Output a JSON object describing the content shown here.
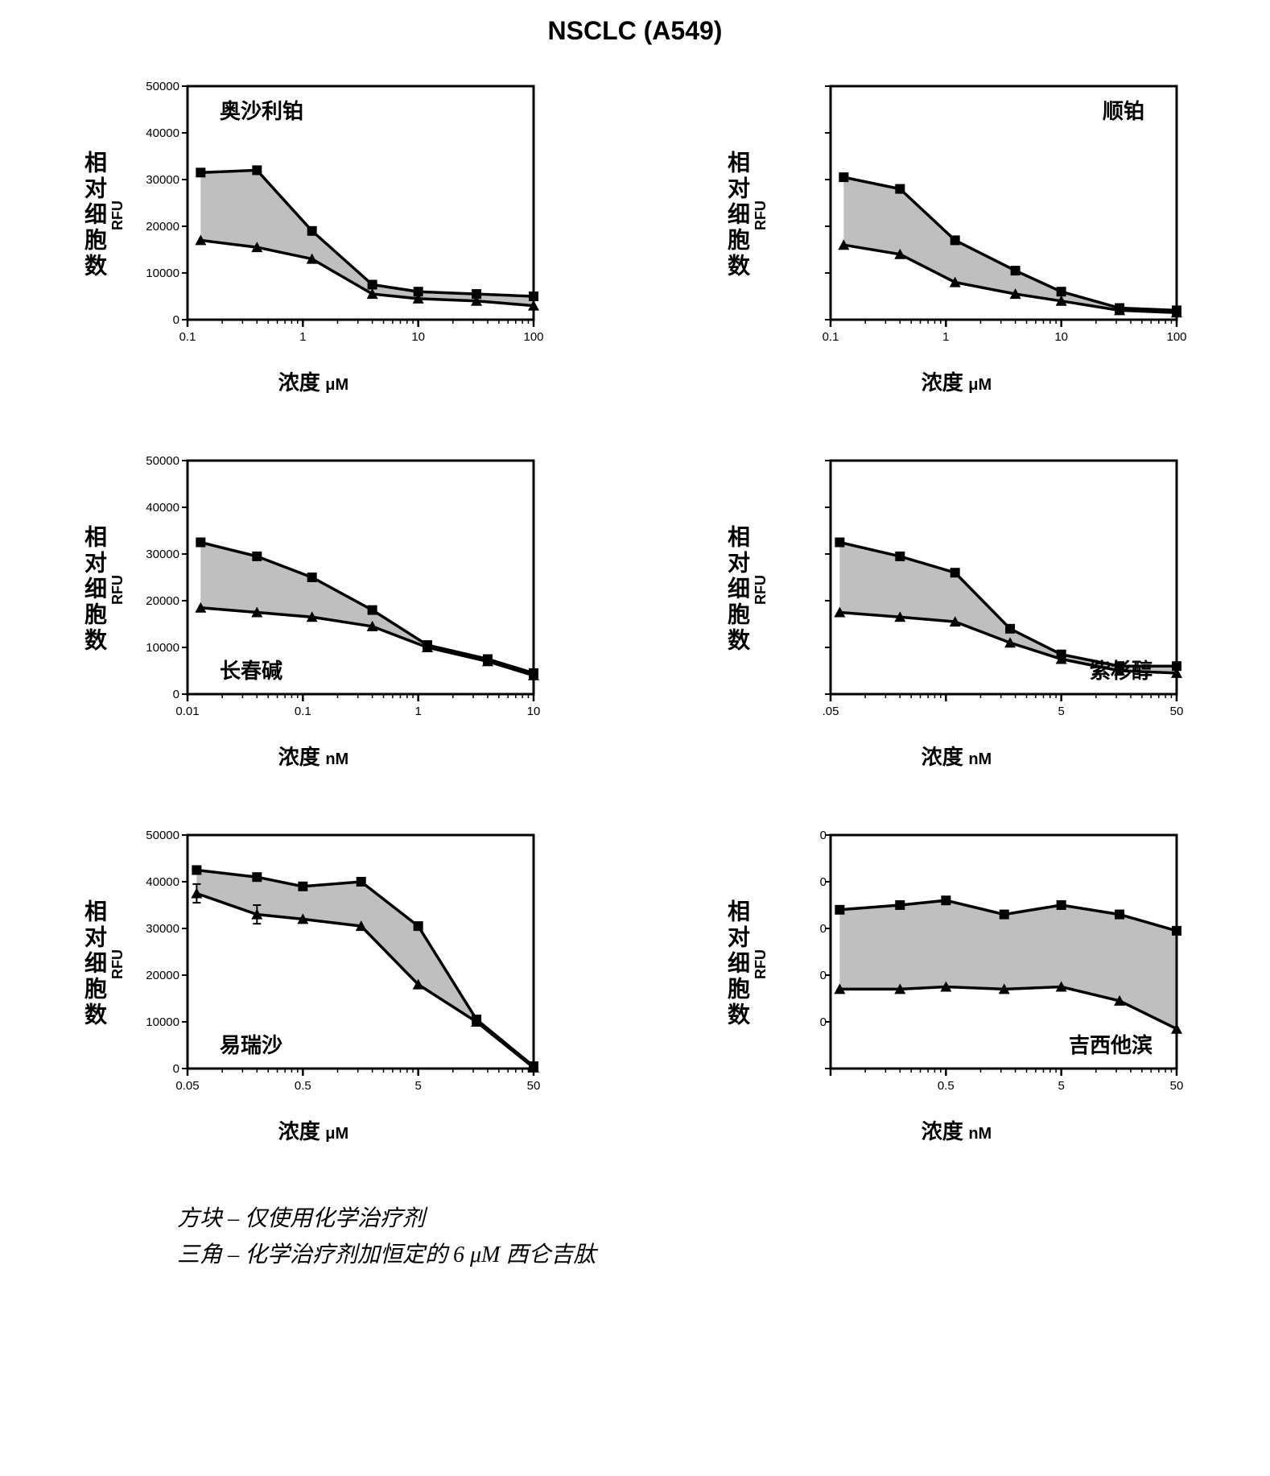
{
  "title": "NSCLC (A549)",
  "ylabel_cn": "相对细胞数",
  "ylabel_en": "RFU",
  "xlabel_cn": "浓度",
  "legend": {
    "square": "方块 – 仅使用化学治疗剂",
    "triangle": "三角 – 化学治疗剂加恒定的 6 μM 西仑吉肽"
  },
  "colors": {
    "line": "#000000",
    "fill": "#bfbfbf",
    "axis": "#000000",
    "bg": "#ffffff"
  },
  "panels": [
    {
      "drug": "奥沙利铂",
      "x_unit": "μM",
      "label_pos": "top-left",
      "ylim": [
        0,
        50000
      ],
      "ytick_step": 10000,
      "xlog": true,
      "xticks": [
        0.1,
        1,
        10,
        100
      ],
      "series": {
        "square": [
          {
            "x": 0.13,
            "y": 31500
          },
          {
            "x": 0.4,
            "y": 32000
          },
          {
            "x": 1.2,
            "y": 19000
          },
          {
            "x": 4,
            "y": 7500
          },
          {
            "x": 10,
            "y": 6000
          },
          {
            "x": 32,
            "y": 5500
          },
          {
            "x": 100,
            "y": 5000
          }
        ],
        "triangle": [
          {
            "x": 0.13,
            "y": 17000
          },
          {
            "x": 0.4,
            "y": 15500
          },
          {
            "x": 1.2,
            "y": 13000
          },
          {
            "x": 4,
            "y": 5500
          },
          {
            "x": 10,
            "y": 4500
          },
          {
            "x": 32,
            "y": 4000
          },
          {
            "x": 100,
            "y": 3000
          }
        ]
      }
    },
    {
      "drug": "顺铂",
      "x_unit": "μM",
      "label_pos": "top-right",
      "ylim": [
        0,
        50000
      ],
      "ytick_step": 10000,
      "hide_yticks": true,
      "xlog": true,
      "xticks": [
        0.1,
        1,
        10,
        100
      ],
      "series": {
        "square": [
          {
            "x": 0.13,
            "y": 30500
          },
          {
            "x": 0.4,
            "y": 28000
          },
          {
            "x": 1.2,
            "y": 17000
          },
          {
            "x": 4,
            "y": 10500
          },
          {
            "x": 10,
            "y": 6000
          },
          {
            "x": 32,
            "y": 2500
          },
          {
            "x": 100,
            "y": 2000
          }
        ],
        "triangle": [
          {
            "x": 0.13,
            "y": 16000
          },
          {
            "x": 0.4,
            "y": 14000
          },
          {
            "x": 1.2,
            "y": 8000
          },
          {
            "x": 4,
            "y": 5500
          },
          {
            "x": 10,
            "y": 4000
          },
          {
            "x": 32,
            "y": 2000
          },
          {
            "x": 100,
            "y": 1500
          }
        ]
      }
    },
    {
      "drug": "长春碱",
      "x_unit": "nM",
      "label_pos": "bottom-left",
      "ylim": [
        0,
        50000
      ],
      "ytick_step": 10000,
      "hide_top_ticks": true,
      "xlog": true,
      "xticks": [
        0.01,
        0.1,
        1,
        10
      ],
      "series": {
        "square": [
          {
            "x": 0.013,
            "y": 32500
          },
          {
            "x": 0.04,
            "y": 29500
          },
          {
            "x": 0.12,
            "y": 25000
          },
          {
            "x": 0.4,
            "y": 18000
          },
          {
            "x": 1.2,
            "y": 10500
          },
          {
            "x": 4,
            "y": 7500
          },
          {
            "x": 10,
            "y": 4500
          }
        ],
        "triangle": [
          {
            "x": 0.013,
            "y": 18500
          },
          {
            "x": 0.04,
            "y": 17500
          },
          {
            "x": 0.12,
            "y": 16500
          },
          {
            "x": 0.4,
            "y": 14500
          },
          {
            "x": 1.2,
            "y": 10000
          },
          {
            "x": 4,
            "y": 7000
          },
          {
            "x": 10,
            "y": 4000
          }
        ]
      }
    },
    {
      "drug": "紫杉醇",
      "x_unit": "nM",
      "label_pos": "bottom-right",
      "ylim": [
        0,
        50000
      ],
      "ytick_step": 10000,
      "hide_yticks": true,
      "hide_top_ticks": true,
      "xlog": true,
      "xticks": [
        0.05,
        0.5,
        5,
        50
      ],
      "xtick_labels": [
        ".05",
        "",
        "5",
        "50"
      ],
      "series": {
        "square": [
          {
            "x": 0.06,
            "y": 32500
          },
          {
            "x": 0.2,
            "y": 29500
          },
          {
            "x": 0.6,
            "y": 26000
          },
          {
            "x": 1.8,
            "y": 14000
          },
          {
            "x": 5,
            "y": 8500
          },
          {
            "x": 16,
            "y": 6000
          },
          {
            "x": 50,
            "y": 6000
          }
        ],
        "triangle": [
          {
            "x": 0.06,
            "y": 17500
          },
          {
            "x": 0.2,
            "y": 16500
          },
          {
            "x": 0.6,
            "y": 15500
          },
          {
            "x": 1.8,
            "y": 11000
          },
          {
            "x": 5,
            "y": 7500
          },
          {
            "x": 16,
            "y": 5000
          },
          {
            "x": 50,
            "y": 4500
          }
        ]
      }
    },
    {
      "drug": "易瑞沙",
      "x_unit": "μM",
      "label_pos": "bottom-left",
      "ylim": [
        0,
        50000
      ],
      "ytick_step": 10000,
      "xlog": true,
      "xticks": [
        0.05,
        0.5,
        5,
        50
      ],
      "series": {
        "square": [
          {
            "x": 0.06,
            "y": 42500
          },
          {
            "x": 0.2,
            "y": 41000
          },
          {
            "x": 0.5,
            "y": 39000
          },
          {
            "x": 1.6,
            "y": 40000
          },
          {
            "x": 5,
            "y": 30500
          },
          {
            "x": 16,
            "y": 10500
          },
          {
            "x": 50,
            "y": 500
          }
        ],
        "triangle": [
          {
            "x": 0.06,
            "y": 37500
          },
          {
            "x": 0.2,
            "y": 33000
          },
          {
            "x": 0.5,
            "y": 32000
          },
          {
            "x": 1.6,
            "y": 30500
          },
          {
            "x": 5,
            "y": 18000
          },
          {
            "x": 16,
            "y": 10000
          },
          {
            "x": 50,
            "y": 200
          }
        ]
      },
      "error_bars": {
        "triangle": [
          {
            "x": 0.06,
            "y": 37500,
            "err": 2000
          },
          {
            "x": 0.2,
            "y": 33000,
            "err": 2000
          }
        ]
      }
    },
    {
      "drug": "吉西他滨",
      "x_unit": "nM",
      "label_pos": "bottom-right",
      "ylim": [
        0,
        50000
      ],
      "ytick_step": 10000,
      "hide_yticks": true,
      "show_y_dashes": true,
      "xlog": true,
      "xticks": [
        0.05,
        0.5,
        5,
        50
      ],
      "xtick_labels": [
        "",
        "0.5",
        "5",
        "50"
      ],
      "series": {
        "square": [
          {
            "x": 0.06,
            "y": 34000
          },
          {
            "x": 0.2,
            "y": 35000
          },
          {
            "x": 0.5,
            "y": 36000
          },
          {
            "x": 1.6,
            "y": 33000
          },
          {
            "x": 5,
            "y": 35000
          },
          {
            "x": 16,
            "y": 33000
          },
          {
            "x": 50,
            "y": 29500
          }
        ],
        "triangle": [
          {
            "x": 0.06,
            "y": 17000
          },
          {
            "x": 0.2,
            "y": 17000
          },
          {
            "x": 0.5,
            "y": 17500
          },
          {
            "x": 1.6,
            "y": 17000
          },
          {
            "x": 5,
            "y": 17500
          },
          {
            "x": 16,
            "y": 14500
          },
          {
            "x": 50,
            "y": 8500
          }
        ]
      }
    }
  ]
}
